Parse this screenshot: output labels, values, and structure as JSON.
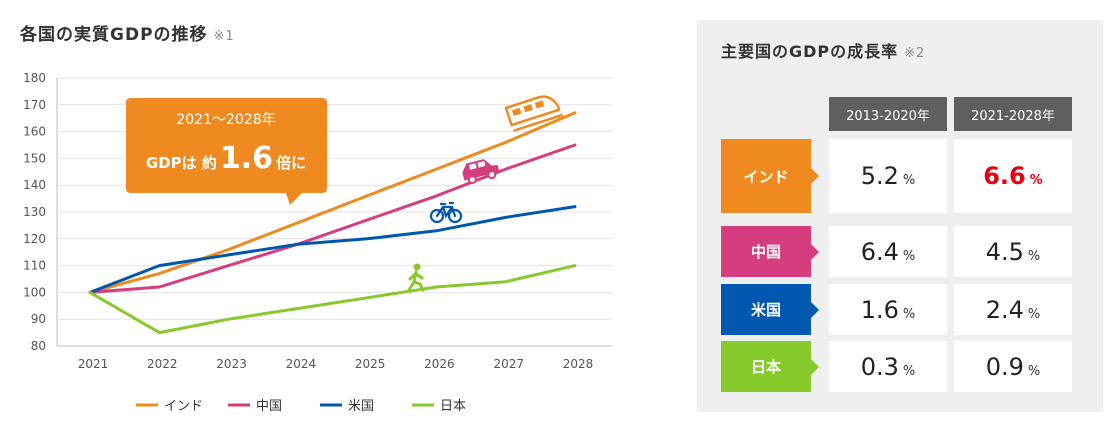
{
  "chart_title": "各国の実質GDPの推移",
  "chart_title_note": "※1",
  "chart_data": {
    "type": "line",
    "title": "各国の実質GDPの推移",
    "x": [
      "2021",
      "2022",
      "2023",
      "2024",
      "2025",
      "2026",
      "2027",
      "2028"
    ],
    "ylim": [
      80,
      180
    ],
    "yticks": [
      "80",
      "90",
      "100",
      "110",
      "120",
      "130",
      "140",
      "150",
      "160",
      "170",
      "180"
    ],
    "grid": true,
    "legend": "bottom",
    "series": [
      {
        "name": "インド",
        "color": "#ee8a20",
        "values": [
          100,
          107,
          116,
          126,
          136,
          146,
          156,
          167
        ]
      },
      {
        "name": "中国",
        "color": "#d63d7e",
        "values": [
          100,
          102,
          110,
          118,
          127,
          136,
          146,
          155
        ]
      },
      {
        "name": "米国",
        "color": "#0057b0",
        "values": [
          100,
          110,
          114,
          118,
          120,
          123,
          128,
          132
        ]
      },
      {
        "name": "日本",
        "color": "#86c92a",
        "values": [
          100,
          85,
          90,
          94,
          98,
          102,
          104,
          110
        ]
      }
    ],
    "callout": {
      "line1": "2021～2028年",
      "prefix": "GDPは 約",
      "value": "1.6",
      "suffix": "倍に",
      "color": "#ee8a20"
    }
  },
  "growth_panel": {
    "title": "主要国のGDPの成長率",
    "note": "※2",
    "col_headers": [
      "2013-2020年",
      "2021-2028年"
    ],
    "unit": "%",
    "rows": [
      {
        "label": "インド",
        "color": "#ee8a20",
        "values": [
          "5.2",
          "6.6"
        ],
        "highlight": [
          false,
          true
        ]
      },
      {
        "label": "中国",
        "color": "#d63d7e",
        "values": [
          "6.4",
          "4.5"
        ],
        "highlight": [
          false,
          false
        ]
      },
      {
        "label": "米国",
        "color": "#0057b0",
        "values": [
          "1.6",
          "2.4"
        ],
        "highlight": [
          false,
          false
        ]
      },
      {
        "label": "日本",
        "color": "#86c92a",
        "values": [
          "0.3",
          "0.9"
        ],
        "highlight": [
          false,
          false
        ]
      }
    ]
  }
}
